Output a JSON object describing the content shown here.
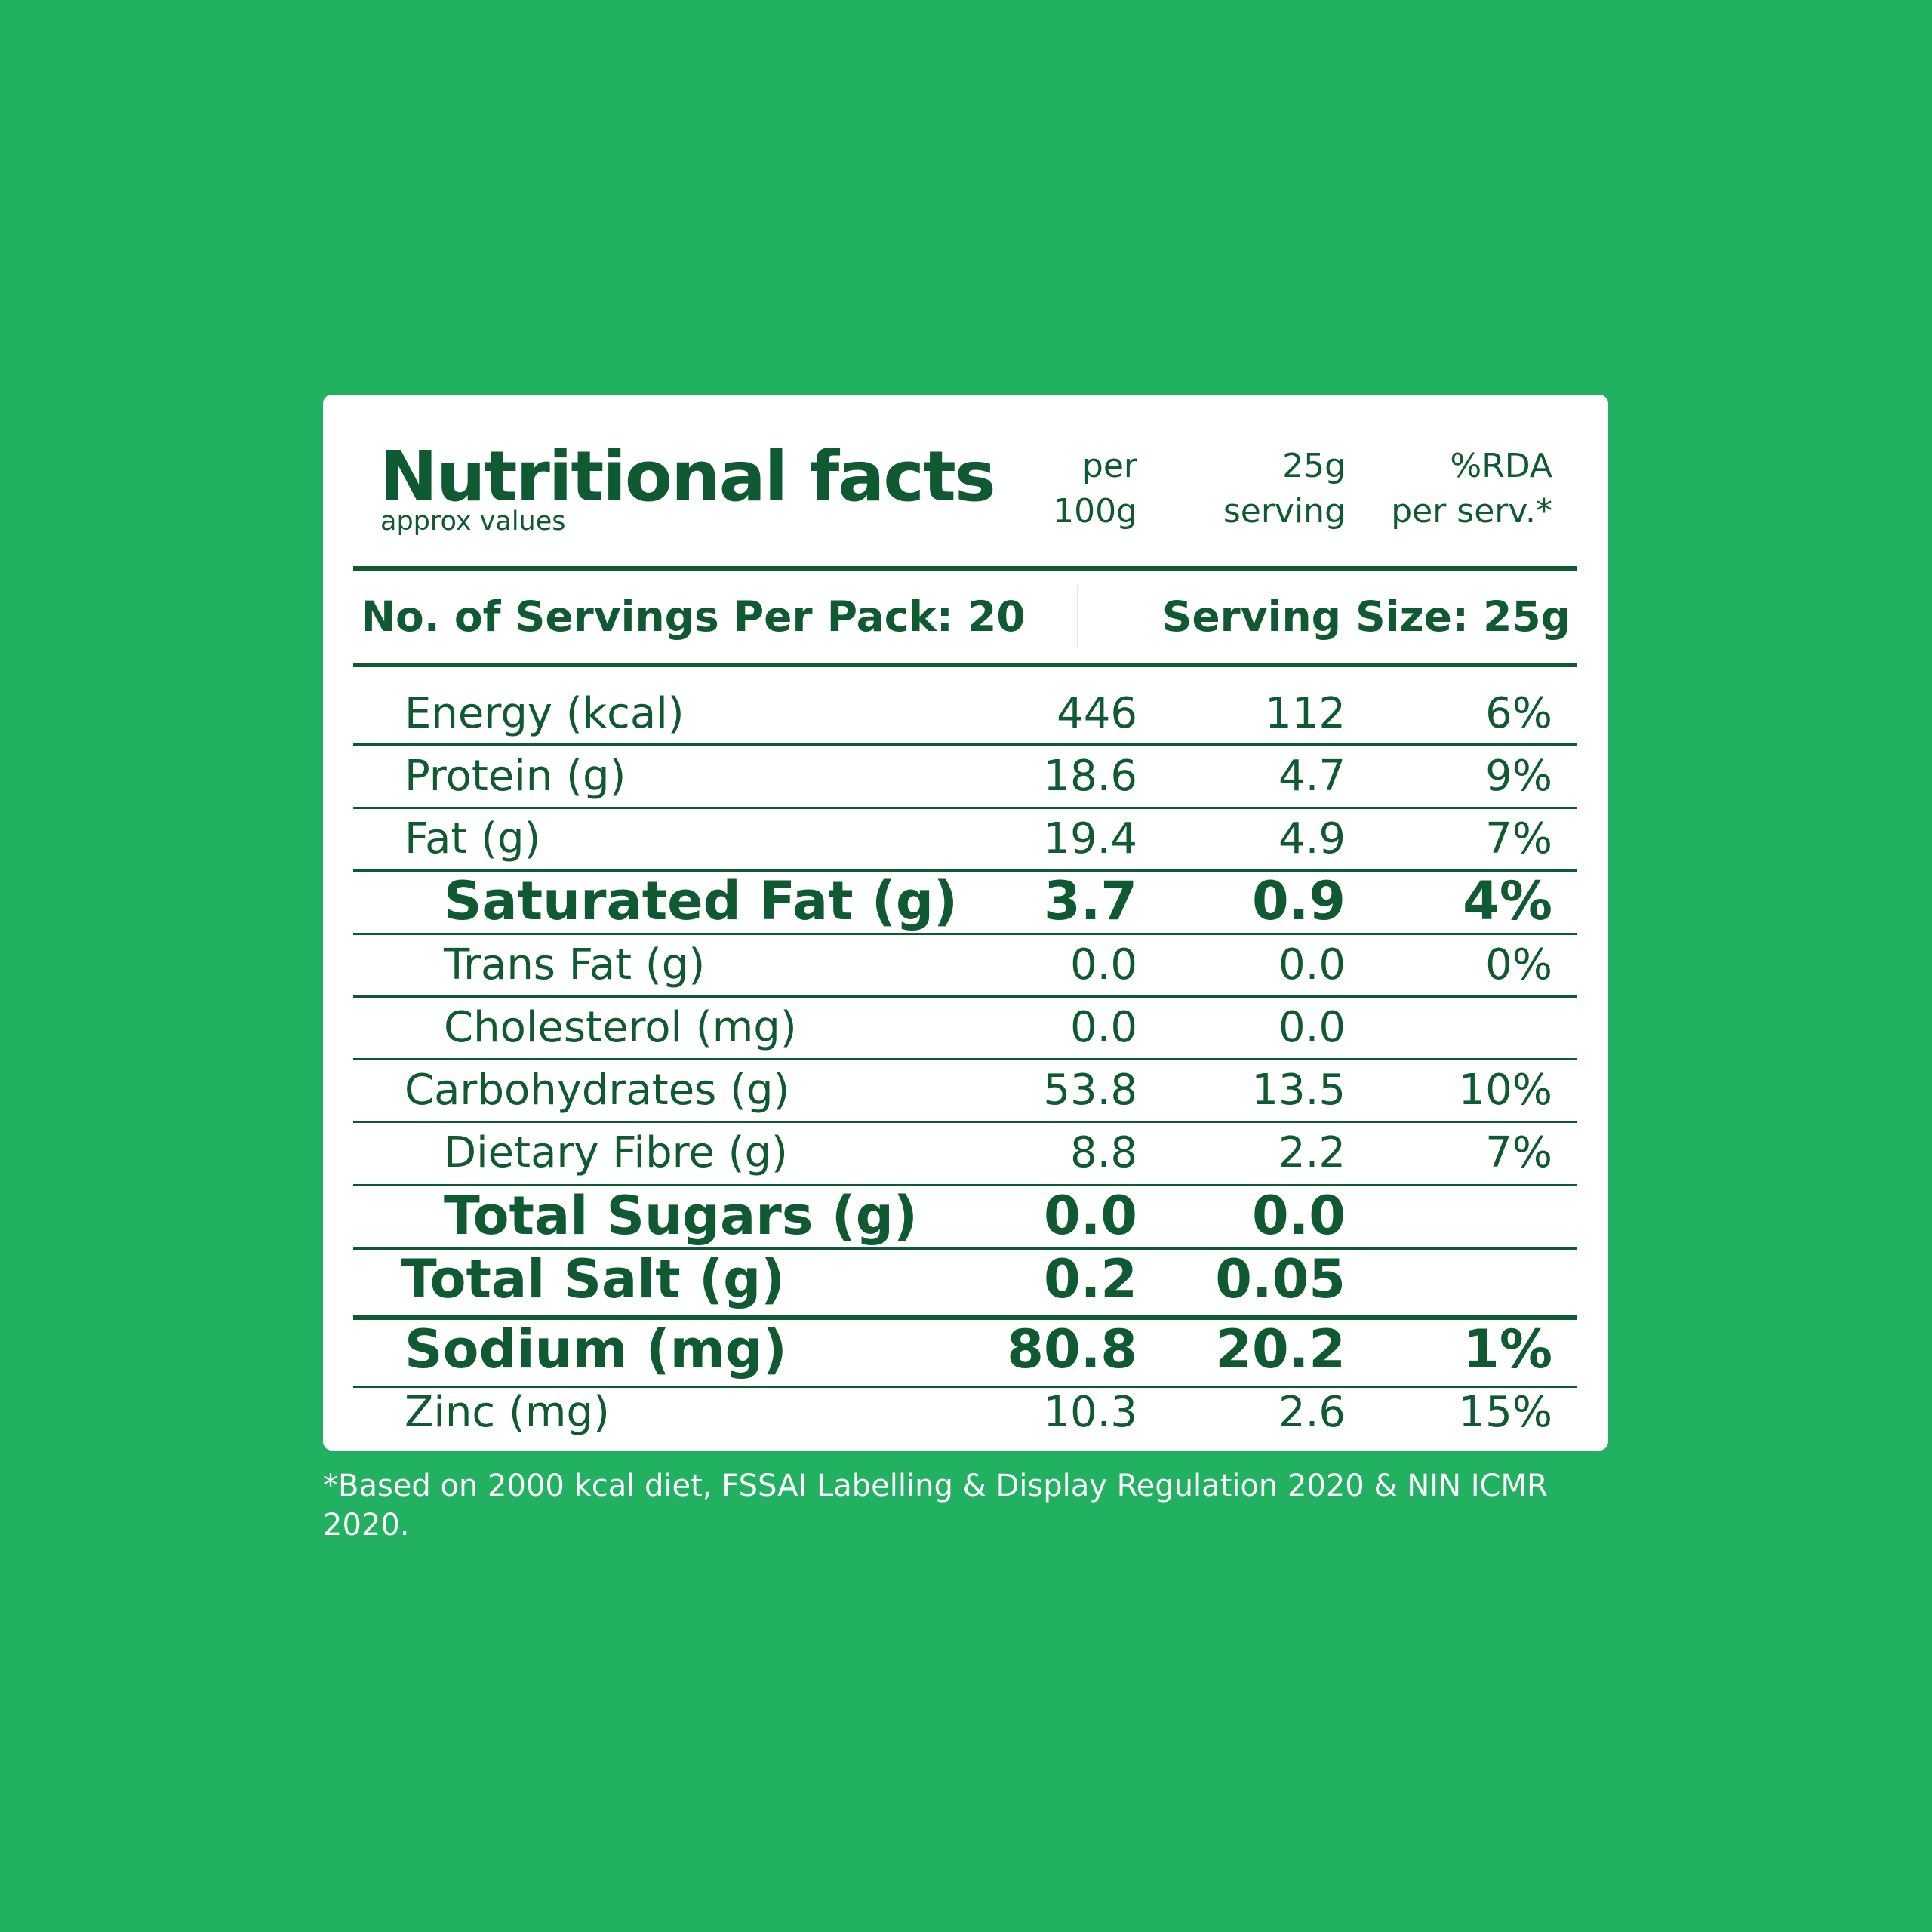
{
  "header": {
    "title": "Nutritional facts",
    "subtitle": "approx values",
    "col1": [
      "per",
      "100g"
    ],
    "col2": [
      "25g",
      "serving"
    ],
    "col3": [
      "%RDA",
      "per serv.*"
    ]
  },
  "servings": {
    "per_pack": "No. of Servings Per Pack: 20",
    "size": "Serving Size: 25g"
  },
  "rows": [
    {
      "label": "Energy (kcal)",
      "per100": "446",
      "serving": "112",
      "rda": "6%"
    },
    {
      "label": "Protein (g)",
      "per100": "18.6",
      "serving": "4.7",
      "rda": "9%"
    },
    {
      "label": "Fat (g)",
      "per100": "19.4",
      "serving": "4.9",
      "rda": "7%"
    },
    {
      "label": "Saturated Fat (g)",
      "per100": "3.7",
      "serving": "0.9",
      "rda": "4%"
    },
    {
      "label": "Trans Fat (g)",
      "per100": "0.0",
      "serving": "0.0",
      "rda": "0%"
    },
    {
      "label": "Cholesterol (mg)",
      "per100": "0.0",
      "serving": "0.0",
      "rda": ""
    },
    {
      "label": "Carbohydrates (g)",
      "per100": "53.8",
      "serving": "13.5",
      "rda": "10%"
    },
    {
      "label": "Dietary Fibre (g)",
      "per100": "8.8",
      "serving": "2.2",
      "rda": "7%"
    },
    {
      "label": "Total Sugars (g)",
      "per100": "0.0",
      "serving": "0.0",
      "rda": ""
    },
    {
      "label": "Total Salt (g)",
      "per100": "0.2",
      "serving": "0.05",
      "rda": ""
    },
    {
      "label": "Sodium (mg)",
      "per100": "80.8",
      "serving": "20.2",
      "rda": "1%"
    },
    {
      "label": "Zinc (mg)",
      "per100": "10.3",
      "serving": "2.6",
      "rda": "15%"
    }
  ],
  "footnote": "*Based on 2000 kcal diet, FSSAI Labelling & Display Regulation 2020 & NIN ICMR 2020.",
  "colors": {
    "background": "#21b161",
    "text": "#0f5a32",
    "card": "#ffffff"
  }
}
